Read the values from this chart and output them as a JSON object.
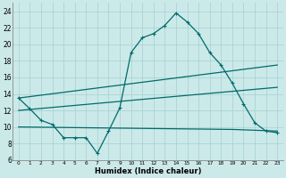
{
  "xlabel": "Humidex (Indice chaleur)",
  "x_ticks": [
    0,
    1,
    2,
    3,
    4,
    5,
    6,
    7,
    8,
    9,
    10,
    11,
    12,
    13,
    14,
    15,
    16,
    17,
    18,
    19,
    20,
    21,
    22,
    23
  ],
  "ylim": [
    6,
    25
  ],
  "y_ticks": [
    6,
    8,
    10,
    12,
    14,
    16,
    18,
    20,
    22,
    24
  ],
  "background_color": "#cce9e9",
  "grid_color": "#aad4d4",
  "line_color": "#006b6b",
  "line1_x": [
    0,
    1,
    2,
    3,
    4,
    5,
    6,
    7,
    8,
    9,
    10,
    11,
    12,
    13,
    14,
    15,
    16,
    17,
    18,
    19,
    20,
    21,
    22,
    23
  ],
  "line1_y": [
    13.5,
    12.2,
    10.8,
    10.3,
    8.7,
    8.7,
    8.7,
    6.8,
    9.5,
    12.3,
    19.0,
    20.8,
    21.3,
    22.3,
    23.8,
    22.7,
    21.3,
    19.0,
    17.5,
    15.3,
    12.8,
    10.5,
    9.5,
    9.3
  ],
  "line2_x": [
    0,
    23
  ],
  "line2_y": [
    13.5,
    17.5
  ],
  "line3_x": [
    0,
    19,
    23
  ],
  "line3_y": [
    10.0,
    9.7,
    9.5
  ],
  "line4_x": [
    0,
    23
  ],
  "line4_y": [
    12.0,
    14.8
  ]
}
